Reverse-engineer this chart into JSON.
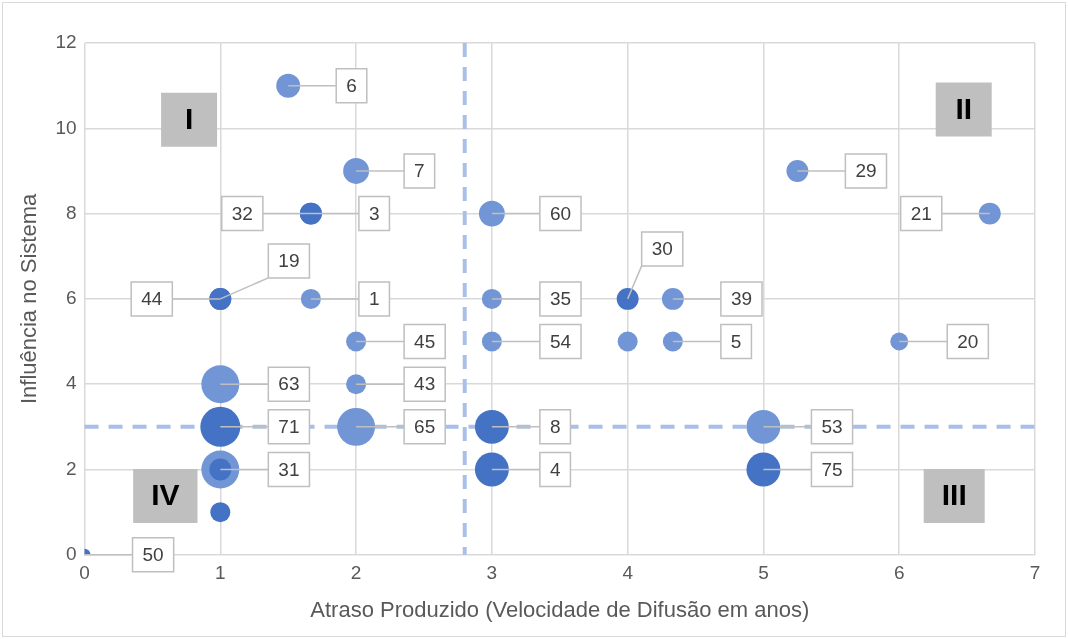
{
  "chart_data": {
    "type": "bubble",
    "xlabel": "Atraso Produzido (Velocidade de Difusão em anos)",
    "ylabel": "Influência no Sistema",
    "x": [
      1.5,
      2,
      1.667,
      1.667,
      1,
      1,
      1.667,
      2,
      2,
      2,
      1,
      1,
      1,
      1,
      1,
      0,
      3,
      3,
      3,
      3,
      3,
      4,
      4.333,
      4,
      4.333,
      5.25,
      6.667,
      6,
      5,
      5
    ],
    "values": [
      11,
      9,
      8,
      8,
      6,
      6,
      6,
      5,
      4,
      3,
      4,
      3,
      2,
      2,
      1,
      0,
      8,
      6,
      5,
      3,
      2,
      6,
      6,
      5,
      5,
      9,
      8,
      5,
      3,
      2
    ],
    "sizes": [
      0.36,
      0.42,
      0.3,
      0.3,
      0.3,
      0.3,
      0.25,
      0.25,
      0.25,
      0.9,
      0.9,
      1,
      0.9,
      0.3,
      0.25,
      0.09,
      0.42,
      0.25,
      0.25,
      0.72,
      0.72,
      0.3,
      0.3,
      0.25,
      0.25,
      0.3,
      0.3,
      0.2,
      0.72,
      0.72
    ],
    "colors": [
      "#7295d5",
      "#7295d5",
      "#4472c4",
      "#4472c4",
      "#4472c4",
      "#4472c4",
      "#7295d5",
      "#7295d5",
      "#7295d5",
      "#7295d5",
      "#7295d5",
      "#4472c4",
      "#7295d5",
      "#4472c4",
      "#4472c4",
      "#4472c4",
      "#7295d5",
      "#7295d5",
      "#7295d5",
      "#4472c4",
      "#4472c4",
      "#4472c4",
      "#7295d5",
      "#7295d5",
      "#7295d5",
      "#7295d5",
      "#7295d5",
      "#7295d5",
      "#7295d5",
      "#4472c4"
    ],
    "xlim": [
      0,
      7
    ],
    "xticks": [
      0,
      1,
      2,
      3,
      4,
      5,
      6,
      7
    ],
    "ylim": [
      0,
      12
    ],
    "yticks": [
      0,
      2,
      4,
      6,
      8,
      10,
      12
    ],
    "grid": true,
    "ref_lines": [
      {
        "axis": "x",
        "value": 2.8,
        "color": "#a9bfe8",
        "line_style": "dashed"
      },
      {
        "axis": "y",
        "value": 3,
        "color": "#a9bfe8",
        "line_style": "dashed"
      }
    ],
    "annotations": [
      "I",
      "II",
      "III",
      "IV",
      {
        "text": "6",
        "x": 1.5,
        "y": 11
      },
      {
        "text": "7",
        "x": 2,
        "y": 9
      },
      {
        "text": "3",
        "x": 1.667,
        "y": 8
      },
      {
        "text": "32",
        "x": 1.667,
        "y": 8
      },
      {
        "text": "44",
        "x": 1,
        "y": 6
      },
      {
        "text": "19",
        "x": 1,
        "y": 6
      },
      {
        "text": "1",
        "x": 1.667,
        "y": 6
      },
      {
        "text": "45",
        "x": 2,
        "y": 5
      },
      {
        "text": "43",
        "x": 2,
        "y": 4
      },
      {
        "text": "65",
        "x": 2,
        "y": 3
      },
      {
        "text": "63",
        "x": 1,
        "y": 4
      },
      {
        "text": "71",
        "x": 1,
        "y": 3
      },
      {
        "text": "31",
        "x": 1,
        "y": 2
      },
      {
        "text": "50",
        "x": 0,
        "y": 0
      },
      {
        "text": "60",
        "x": 3,
        "y": 8
      },
      {
        "text": "35",
        "x": 3,
        "y": 6
      },
      {
        "text": "54",
        "x": 3,
        "y": 5
      },
      {
        "text": "8",
        "x": 3,
        "y": 3
      },
      {
        "text": "4",
        "x": 3,
        "y": 2
      },
      {
        "text": "30",
        "x": 4,
        "y": 6
      },
      {
        "text": "39",
        "x": 4.333,
        "y": 6
      },
      {
        "text": "5",
        "x": 4.333,
        "y": 5
      },
      {
        "text": "29",
        "x": 5.25,
        "y": 9
      },
      {
        "text": "21",
        "x": 6.667,
        "y": 8
      },
      {
        "text": "20",
        "x": 6,
        "y": 5
      },
      {
        "text": "53",
        "x": 5,
        "y": 3
      },
      {
        "text": "75",
        "x": 5,
        "y": 2
      }
    ]
  }
}
